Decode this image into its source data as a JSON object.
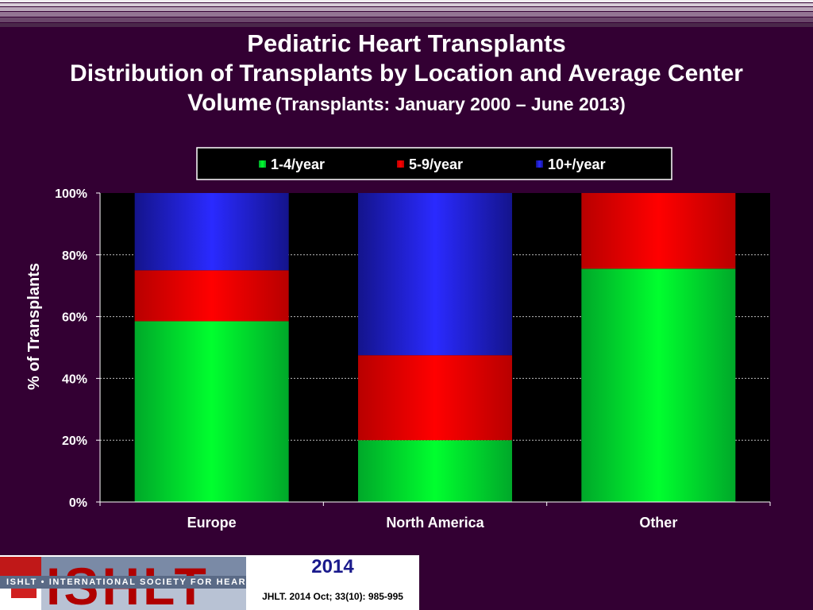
{
  "header": {
    "title": "Pediatric Heart Transplants",
    "subtitle_line1": "Distribution of Transplants by Location and Average Center",
    "subtitle_line2_main": "Volume",
    "subtitle_line2_paren": "(Transplants: January 2000 – June 2013)"
  },
  "chart_data": {
    "type": "bar",
    "stacked": true,
    "categories": [
      "Europe",
      "North America",
      "Other"
    ],
    "series": [
      {
        "name": "1-4/year",
        "values": [
          58.5,
          20.0,
          75.5
        ],
        "color": "#00cc33"
      },
      {
        "name": "5-9/year",
        "values": [
          16.5,
          27.5,
          24.5
        ],
        "color": "#ee0000"
      },
      {
        "name": "10+/year",
        "values": [
          25.0,
          52.5,
          0.0
        ],
        "color": "#2020ee"
      }
    ],
    "ylabel": "% of Transplants",
    "ylim": [
      0,
      100
    ],
    "yticks": [
      "0%",
      "20%",
      "40%",
      "60%",
      "80%",
      "100%"
    ],
    "grid": true,
    "legend_position": "top"
  },
  "footer": {
    "logo_text": "ISHLT",
    "banner_text": "ISHLT • INTERNATIONAL SOCIETY FOR HEART AND LUNG TRANSPLANTATION",
    "year": "2014",
    "citation": "JHLT. 2014 Oct; 33(10): 985-995"
  }
}
